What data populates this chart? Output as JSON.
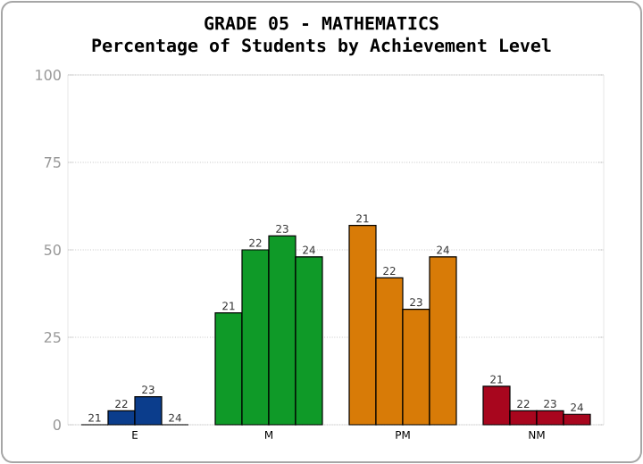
{
  "chart_data": {
    "type": "bar",
    "title": "GRADE 05 - MATHEMATICS",
    "subtitle": "Percentage of Students by Achievement Level",
    "categories": [
      "E",
      "M",
      "PM",
      "NM"
    ],
    "series": [
      {
        "name": "21",
        "colors": [
          "#0b3d8c",
          "#0f9a28",
          "#d87b07",
          "#a8061e"
        ],
        "values": [
          0,
          32,
          57,
          11
        ]
      },
      {
        "name": "22",
        "colors": [
          "#0b3d8c",
          "#0f9a28",
          "#d87b07",
          "#a8061e"
        ],
        "values": [
          4,
          50,
          42,
          4
        ]
      },
      {
        "name": "23",
        "colors": [
          "#0b3d8c",
          "#0f9a28",
          "#d87b07",
          "#a8061e"
        ],
        "values": [
          8,
          54,
          33,
          4
        ]
      },
      {
        "name": "24",
        "colors": [
          "#0b3d8c",
          "#0f9a28",
          "#d87b07",
          "#a8061e"
        ],
        "values": [
          0,
          48,
          48,
          3
        ]
      }
    ],
    "ylim": [
      0,
      100
    ],
    "yticks": [
      0,
      25,
      50,
      75,
      100
    ],
    "grid": "y"
  }
}
